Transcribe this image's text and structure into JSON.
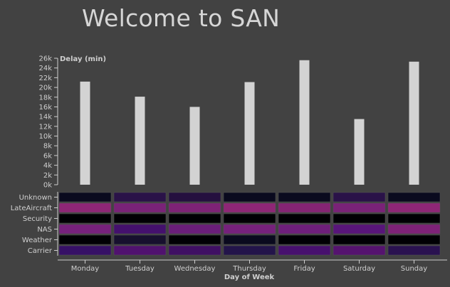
{
  "page": {
    "title": "Welcome to SAN"
  },
  "colors": {
    "background": "#424242",
    "bar": "#d3d3d3",
    "axis": "#cfcfcf",
    "text": "#cfcfcf"
  },
  "chart_data": [
    {
      "type": "bar",
      "ylabel": "Delay (min)",
      "xlabel": "",
      "categories": [
        "Monday",
        "Tuesday",
        "Wednesday",
        "Thursday",
        "Friday",
        "Saturday",
        "Sunday"
      ],
      "values": [
        21200,
        18100,
        16000,
        21100,
        25600,
        13500,
        25300
      ],
      "ylim": [
        0,
        26000
      ],
      "yticks": [
        "0k",
        "2k",
        "4k",
        "6k",
        "8k",
        "10k",
        "12k",
        "14k",
        "16k",
        "18k",
        "20k",
        "22k",
        "24k",
        "26k"
      ],
      "grid": false
    },
    {
      "type": "heatmap",
      "xlabel": "Day of Week",
      "ylabel": "",
      "x": [
        "Monday",
        "Tuesday",
        "Wednesday",
        "Thursday",
        "Friday",
        "Saturday",
        "Sunday"
      ],
      "y": [
        "Unknown",
        "LateAircraft",
        "Security",
        "NAS",
        "Weather",
        "Carrier"
      ],
      "cells": [
        [
          "#0a0a1e",
          "#2a1248",
          "#25103f",
          "#0a0a1e",
          "#0a0a1e",
          "#2a1248",
          "#0a0a1e"
        ],
        [
          "#8e2676",
          "#7a2278",
          "#7e2276",
          "#8e2676",
          "#852474",
          "#7a2278",
          "#8e2676"
        ],
        [
          "#000004",
          "#000004",
          "#000004",
          "#000004",
          "#000004",
          "#000004",
          "#000004"
        ],
        [
          "#76217c",
          "#44106d",
          "#6a1e7a",
          "#76217c",
          "#6e1f7b",
          "#58157a",
          "#7e2278"
        ],
        [
          "#000004",
          "#17102e",
          "#000004",
          "#0a0a1e",
          "#000004",
          "#000004",
          "#000004"
        ],
        [
          "#361066",
          "#50126f",
          "#3f0f63",
          "#23144a",
          "#47106e",
          "#55136f",
          "#2a1250"
        ]
      ]
    }
  ]
}
